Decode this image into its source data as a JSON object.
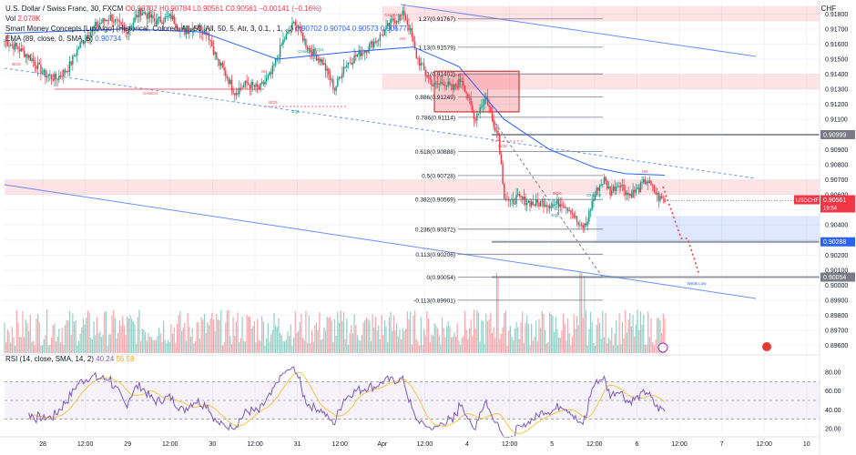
{
  "header": {
    "line1": {
      "symbol": "U.S. Dollar / Swiss Franc, 30, FXCM",
      "ohlc": "O0.90702 H0.90784 L0.90561 C0.90561 −0.00141 (−0.16%)"
    },
    "line2": {
      "vol_label": "Vol",
      "vol_value": "2.078K"
    },
    "line3": {
      "indicator": "Smart Money Concepts [LuxAlgo] (Historical, Colored, All, 50, All, 50, 5, Atr, 3, 0.1, , 1, ...)",
      "values": "0.90702 0.90704 0.90573 0.90577"
    },
    "line4": {
      "indicator": "EMA (89, close, 0, SMA, 5)",
      "value": "0.90734"
    }
  },
  "currency": "CHF",
  "price_axis": {
    "ticks": [
      "0.91800",
      "0.91700",
      "0.91600",
      "0.91500",
      "0.91400",
      "0.91300",
      "0.91200",
      "0.91100",
      "0.91000",
      "0.90900",
      "0.90800",
      "0.90700",
      "0.90600",
      "0.90500",
      "0.90400",
      "0.90300",
      "0.90200",
      "0.90100",
      "0.90000",
      "0.89900",
      "0.89800",
      "0.89700",
      "0.89600"
    ],
    "ticker_label": "USDCHF",
    "ticker_price": "0.90561",
    "ticker_time": "19:54",
    "level_labels": [
      "0.90999",
      "0.90288",
      "0.90054"
    ]
  },
  "time_axis": [
    "28",
    "12:00",
    "29",
    "12:00",
    "30",
    "12:00",
    "31",
    "12:00",
    "Apr",
    "12:00",
    "4",
    "12:00",
    "5",
    "12:00",
    "6",
    "12:00",
    "7",
    "12:00",
    "10"
  ],
  "fib_levels": [
    {
      "label": "1.27(0.91767)"
    },
    {
      "label": "1.13(0.91579)"
    },
    {
      "label": "1(0.91402)"
    },
    {
      "label": "0.886(0.91249)"
    },
    {
      "label": "0.786(0.91114)"
    },
    {
      "label": "0.618(0.90888)"
    },
    {
      "label": "0.5(0.90728)"
    },
    {
      "label": "0.382(0.90569)"
    },
    {
      "label": "0.236(0.90372)"
    },
    {
      "label": "0.113(0.90206)"
    },
    {
      "label": "0(0.90054)"
    },
    {
      "label": "-0.113(0.89901)"
    }
  ],
  "annotations": {
    "choch_1": "CHoCH",
    "choch_2": "CHoCH",
    "choch_3": "CHoCH",
    "choch_4": "CHoCH",
    "choch_5": "CHoCH",
    "bos_1": "BOS",
    "bos_2": "BOS",
    "bos_3": "BOS",
    "bos_4": "BOS",
    "eql_1": "EQL",
    "eql_2": "EQL",
    "eqh": "EQH",
    "weak_low": "Weak Low",
    "sh_1": "SH",
    "sh_2": "SH",
    "sh_3": "SH"
  },
  "rsi": {
    "legend": "RSI (14, close, SMA, 14, 2)",
    "value1": "40.24",
    "value2": "56.58",
    "ticks": [
      "80.00",
      "60.00",
      "40.00",
      "20.00"
    ]
  },
  "colors": {
    "up": "#089981",
    "down": "#f23645",
    "ema": "#2962ff",
    "zone": "#f23645",
    "demand": "#2962ff",
    "rsi_line": "#7e57c2",
    "rsi_ma": "#f5c542",
    "channel": "#2962ff"
  },
  "chart_data": {
    "type": "candlestick",
    "x_labels": [
      "28",
      "12:00",
      "29",
      "12:00",
      "30",
      "12:00",
      "31",
      "12:00",
      "Apr",
      "12:00",
      "4",
      "12:00",
      "5",
      "12:00",
      "6",
      "12:00",
      "7",
      "12:00",
      "10"
    ],
    "ylim": [
      0.8955,
      0.9188
    ],
    "anchor_closes": [
      [
        0,
        0.9162
      ],
      [
        8,
        0.9158
      ],
      [
        18,
        0.915
      ],
      [
        26,
        0.914
      ],
      [
        34,
        0.9137
      ],
      [
        42,
        0.9144
      ],
      [
        50,
        0.916
      ],
      [
        60,
        0.9172
      ],
      [
        70,
        0.9178
      ],
      [
        80,
        0.9168
      ],
      [
        90,
        0.9182
      ],
      [
        100,
        0.9175
      ],
      [
        110,
        0.9178
      ],
      [
        118,
        0.9168
      ],
      [
        126,
        0.9172
      ],
      [
        134,
        0.9168
      ],
      [
        140,
        0.915
      ],
      [
        146,
        0.914
      ],
      [
        152,
        0.9128
      ],
      [
        160,
        0.9134
      ],
      [
        168,
        0.913
      ],
      [
        176,
        0.914
      ],
      [
        184,
        0.9162
      ],
      [
        192,
        0.9175
      ],
      [
        200,
        0.9158
      ],
      [
        210,
        0.9148
      ],
      [
        218,
        0.913
      ],
      [
        224,
        0.9145
      ],
      [
        232,
        0.9152
      ],
      [
        240,
        0.9158
      ],
      [
        248,
        0.9165
      ],
      [
        256,
        0.9175
      ],
      [
        264,
        0.918
      ],
      [
        268,
        0.9168
      ],
      [
        272,
        0.9152
      ],
      [
        278,
        0.914
      ],
      [
        284,
        0.9132
      ],
      [
        290,
        0.9135
      ],
      [
        296,
        0.913
      ],
      [
        302,
        0.9137
      ],
      [
        306,
        0.9125
      ],
      [
        310,
        0.911
      ],
      [
        314,
        0.9118
      ],
      [
        318,
        0.9125
      ],
      [
        322,
        0.911
      ],
      [
        326,
        0.91
      ],
      [
        330,
        0.906
      ],
      [
        334,
        0.9054
      ],
      [
        338,
        0.9058
      ],
      [
        344,
        0.9056
      ],
      [
        350,
        0.9054
      ],
      [
        356,
        0.9055
      ],
      [
        362,
        0.9053
      ],
      [
        368,
        0.9055
      ],
      [
        374,
        0.905
      ],
      [
        380,
        0.9038
      ],
      [
        384,
        0.904
      ],
      [
        388,
        0.9055
      ],
      [
        392,
        0.9065
      ],
      [
        396,
        0.907
      ],
      [
        400,
        0.9062
      ],
      [
        406,
        0.9068
      ],
      [
        412,
        0.906
      ],
      [
        418,
        0.9063
      ],
      [
        424,
        0.907
      ],
      [
        428,
        0.9064
      ],
      [
        432,
        0.9058
      ],
      [
        436,
        0.9056
      ]
    ],
    "ema": [
      [
        0,
        0.9167
      ],
      [
        80,
        0.917
      ],
      [
        130,
        0.9168
      ],
      [
        180,
        0.915
      ],
      [
        230,
        0.9155
      ],
      [
        270,
        0.9158
      ],
      [
        300,
        0.9145
      ],
      [
        330,
        0.911
      ],
      [
        360,
        0.909
      ],
      [
        390,
        0.9078
      ],
      [
        410,
        0.9074
      ],
      [
        436,
        0.9073
      ]
    ],
    "supply_zones": [
      [
        0.907,
        0.906
      ],
      [
        0.914,
        0.913
      ],
      [
        0.9185,
        0.9175
      ],
      [
        0.9142,
        0.9115
      ]
    ],
    "demand_zone": [
      0.9046,
      0.9028
    ],
    "levels": [
      0.90999,
      0.90288,
      0.90054
    ],
    "rsi_ylim": [
      15,
      85
    ],
    "rsi_levels": [
      70,
      50,
      30
    ]
  }
}
